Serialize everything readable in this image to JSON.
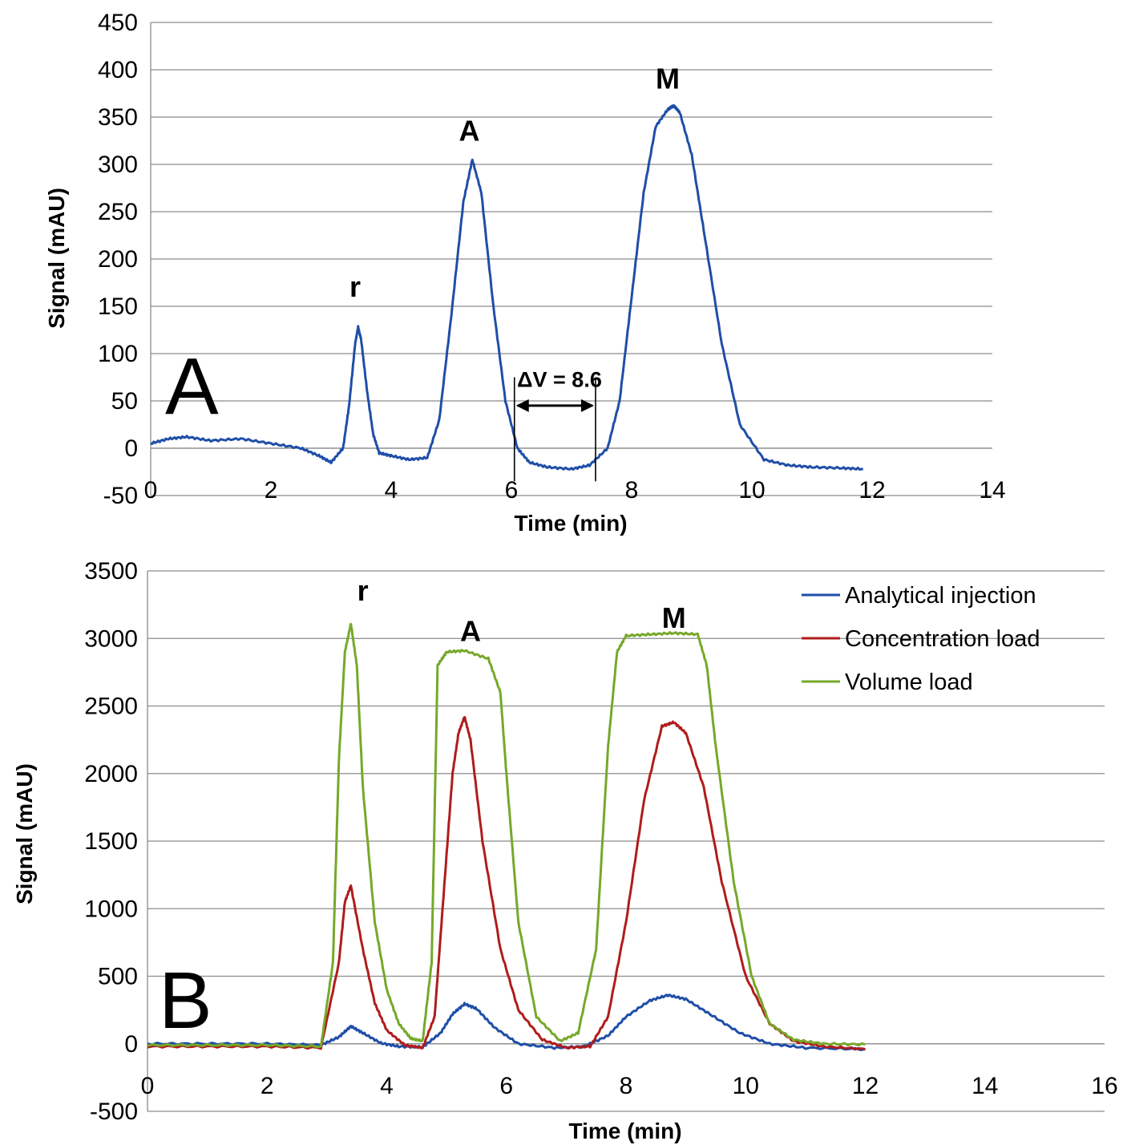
{
  "chart_data": [
    {
      "type": "line",
      "panel_label": "A",
      "xlabel": "Time (min)",
      "ylabel": "Signal (mAU)",
      "xlim": [
        0,
        14
      ],
      "ylim": [
        -50,
        450
      ],
      "x_ticks": [
        "0",
        "2",
        "4",
        "6",
        "8",
        "10",
        "12",
        "14"
      ],
      "y_ticks": [
        "450",
        "400",
        "350",
        "300",
        "250",
        "200",
        "150",
        "100",
        "50",
        "0",
        "-50"
      ],
      "grid": "horizontal",
      "series": [
        {
          "color": "#1f4ea8",
          "x": [
            0.0,
            0.3,
            0.6,
            1.0,
            1.5,
            2.0,
            2.5,
            2.8,
            3.0,
            3.2,
            3.3,
            3.4,
            3.45,
            3.5,
            3.6,
            3.7,
            3.8,
            4.0,
            4.3,
            4.6,
            4.8,
            5.0,
            5.2,
            5.35,
            5.5,
            5.7,
            5.9,
            6.1,
            6.3,
            6.6,
            7.0,
            7.3,
            7.6,
            7.8,
            8.0,
            8.2,
            8.4,
            8.6,
            8.7,
            8.8,
            9.0,
            9.2,
            9.5,
            9.8,
            10.2,
            10.6,
            11.0,
            11.5,
            11.85
          ],
          "y": [
            5,
            10,
            12,
            8,
            10,
            5,
            0,
            -8,
            -15,
            0,
            45,
            110,
            128,
            115,
            60,
            15,
            -5,
            -8,
            -12,
            -10,
            30,
            140,
            260,
            305,
            270,
            150,
            50,
            0,
            -15,
            -20,
            -22,
            -18,
            0,
            50,
            160,
            270,
            340,
            358,
            362,
            355,
            310,
            230,
            110,
            25,
            -12,
            -18,
            -20,
            -21,
            -22
          ]
        }
      ],
      "annotations": [
        {
          "text": "r",
          "x": 3.4,
          "y": 160
        },
        {
          "text": "A",
          "x": 5.3,
          "y": 325
        },
        {
          "text": "M",
          "x": 8.6,
          "y": 380
        },
        {
          "text": "ΔV = 8.6",
          "x": 6.8,
          "y": 65,
          "from_x": 6.05,
          "to_x": 7.4
        }
      ]
    },
    {
      "type": "line",
      "panel_label": "B",
      "xlabel": "Time (min)",
      "ylabel": "Signal (mAU)",
      "xlim": [
        0,
        16
      ],
      "ylim": [
        -500,
        3500
      ],
      "x_ticks": [
        "0",
        "2",
        "4",
        "6",
        "8",
        "10",
        "12",
        "14",
        "16"
      ],
      "y_ticks": [
        "3500",
        "3000",
        "2500",
        "2000",
        "1500",
        "1000",
        "500",
        "0",
        "-500"
      ],
      "grid": "horizontal",
      "legend": "top-right",
      "series": [
        {
          "name": "Analytical injection",
          "color": "#1f4ea8",
          "x": [
            0,
            1,
            2,
            2.9,
            3.2,
            3.4,
            3.6,
            3.9,
            4.2,
            4.6,
            4.9,
            5.1,
            5.3,
            5.5,
            5.8,
            6.2,
            6.8,
            7.3,
            7.7,
            8.0,
            8.4,
            8.7,
            9.0,
            9.4,
            9.9,
            10.4,
            11.0,
            12.0
          ],
          "y": [
            0,
            0,
            0,
            -10,
            50,
            130,
            80,
            5,
            -20,
            -25,
            80,
            220,
            295,
            260,
            120,
            0,
            -30,
            -20,
            60,
            200,
            320,
            360,
            330,
            220,
            80,
            0,
            -30,
            -40
          ]
        },
        {
          "name": "Concentration load",
          "color": "#b01c1c",
          "x": [
            0,
            1,
            2,
            2.9,
            3.2,
            3.3,
            3.4,
            3.6,
            3.8,
            4.0,
            4.3,
            4.6,
            4.8,
            4.95,
            5.1,
            5.2,
            5.3,
            5.4,
            5.6,
            5.9,
            6.2,
            6.6,
            7.0,
            7.4,
            7.7,
            8.0,
            8.3,
            8.6,
            8.8,
            9.0,
            9.3,
            9.6,
            10.0,
            10.4,
            10.8,
            11.3,
            12.0
          ],
          "y": [
            -20,
            -20,
            -20,
            -30,
            600,
            1050,
            1170,
            700,
            300,
            100,
            -10,
            -30,
            200,
            1100,
            2000,
            2300,
            2420,
            2250,
            1500,
            700,
            250,
            30,
            -30,
            -20,
            200,
            900,
            1800,
            2350,
            2380,
            2300,
            1900,
            1200,
            500,
            150,
            20,
            -20,
            -40
          ]
        },
        {
          "name": "Volume load",
          "color": "#76a82a",
          "x": [
            0,
            1,
            2,
            2.9,
            3.1,
            3.2,
            3.3,
            3.4,
            3.5,
            3.6,
            3.8,
            4.0,
            4.2,
            4.4,
            4.6,
            4.75,
            4.85,
            5.0,
            5.3,
            5.7,
            5.9,
            6.0,
            6.2,
            6.5,
            6.9,
            7.2,
            7.5,
            7.7,
            7.85,
            8.0,
            8.4,
            8.8,
            9.2,
            9.35,
            9.5,
            9.8,
            10.1,
            10.4,
            10.8,
            11.3,
            12.0
          ],
          "y": [
            -10,
            -10,
            -10,
            -20,
            600,
            2100,
            2900,
            3110,
            2800,
            1900,
            900,
            400,
            150,
            40,
            20,
            600,
            2800,
            2900,
            2910,
            2850,
            2600,
            2000,
            900,
            200,
            20,
            80,
            700,
            2200,
            2900,
            3020,
            3030,
            3040,
            3030,
            2800,
            2200,
            1200,
            500,
            150,
            30,
            0,
            -5
          ]
        }
      ],
      "annotations": [
        {
          "text": "r",
          "x": 3.6,
          "y": 3280
        },
        {
          "text": "A",
          "x": 5.4,
          "y": 2980
        },
        {
          "text": "M",
          "x": 8.8,
          "y": 3080
        }
      ]
    }
  ]
}
